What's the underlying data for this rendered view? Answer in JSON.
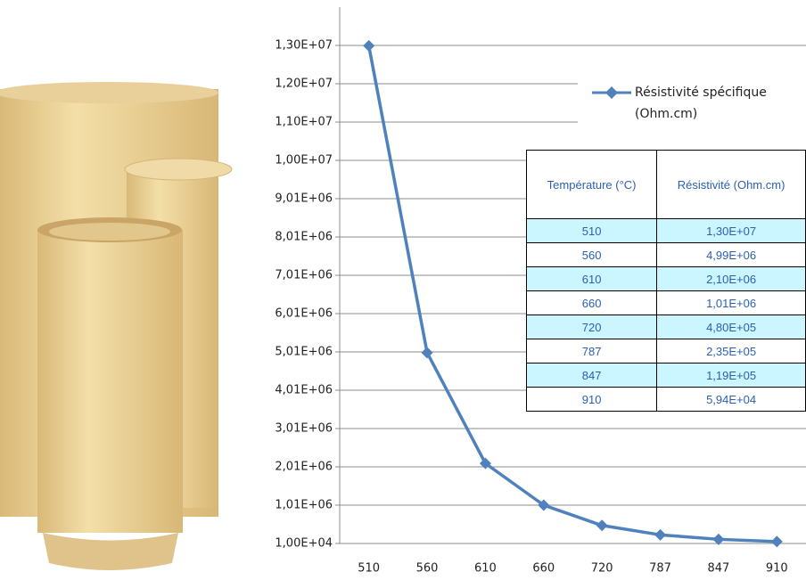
{
  "chart_data": {
    "type": "line",
    "categories": [
      "510",
      "560",
      "610",
      "660",
      "720",
      "787",
      "847",
      "910"
    ],
    "series": [
      {
        "name": "Résistivité spécifique (Ohm.cm)",
        "color": "#4f81bd",
        "values": [
          13000000,
          4990000,
          2100000,
          1010000,
          480000,
          235000,
          119000,
          59400
        ]
      }
    ],
    "ylim": [
      10000,
      14010000
    ],
    "yticks": [
      {
        "value": 10000,
        "label": "1,00E+04"
      },
      {
        "value": 1010000,
        "label": "1,01E+06"
      },
      {
        "value": 2010000,
        "label": "2,01E+06"
      },
      {
        "value": 3010000,
        "label": "3,01E+06"
      },
      {
        "value": 4010000,
        "label": "4,01E+06"
      },
      {
        "value": 5010000,
        "label": "5,01E+06"
      },
      {
        "value": 6010000,
        "label": "6,01E+06"
      },
      {
        "value": 7010000,
        "label": "7,01E+06"
      },
      {
        "value": 8010000,
        "label": "8,01E+06"
      },
      {
        "value": 9010000,
        "label": "9,01E+06"
      },
      {
        "value": 10010000,
        "label": "1,00E+07"
      },
      {
        "value": 11010000,
        "label": "1,10E+07"
      },
      {
        "value": 12010000,
        "label": "1,20E+07"
      },
      {
        "value": 13010000,
        "label": "1,30E+07"
      }
    ],
    "grid": true,
    "legend": "right",
    "table": {
      "columns": [
        "Température (°C)",
        "Résistivité (Ohm.cm)"
      ],
      "rows": [
        [
          "510",
          "1,30E+07"
        ],
        [
          "560",
          "4,99E+06"
        ],
        [
          "610",
          "2,10E+06"
        ],
        [
          "660",
          "1,01E+06"
        ],
        [
          "720",
          "4,80E+05"
        ],
        [
          "787",
          "2,35E+05"
        ],
        [
          "847",
          "1,19E+05"
        ],
        [
          "910",
          "5,94E+04"
        ]
      ]
    }
  }
}
